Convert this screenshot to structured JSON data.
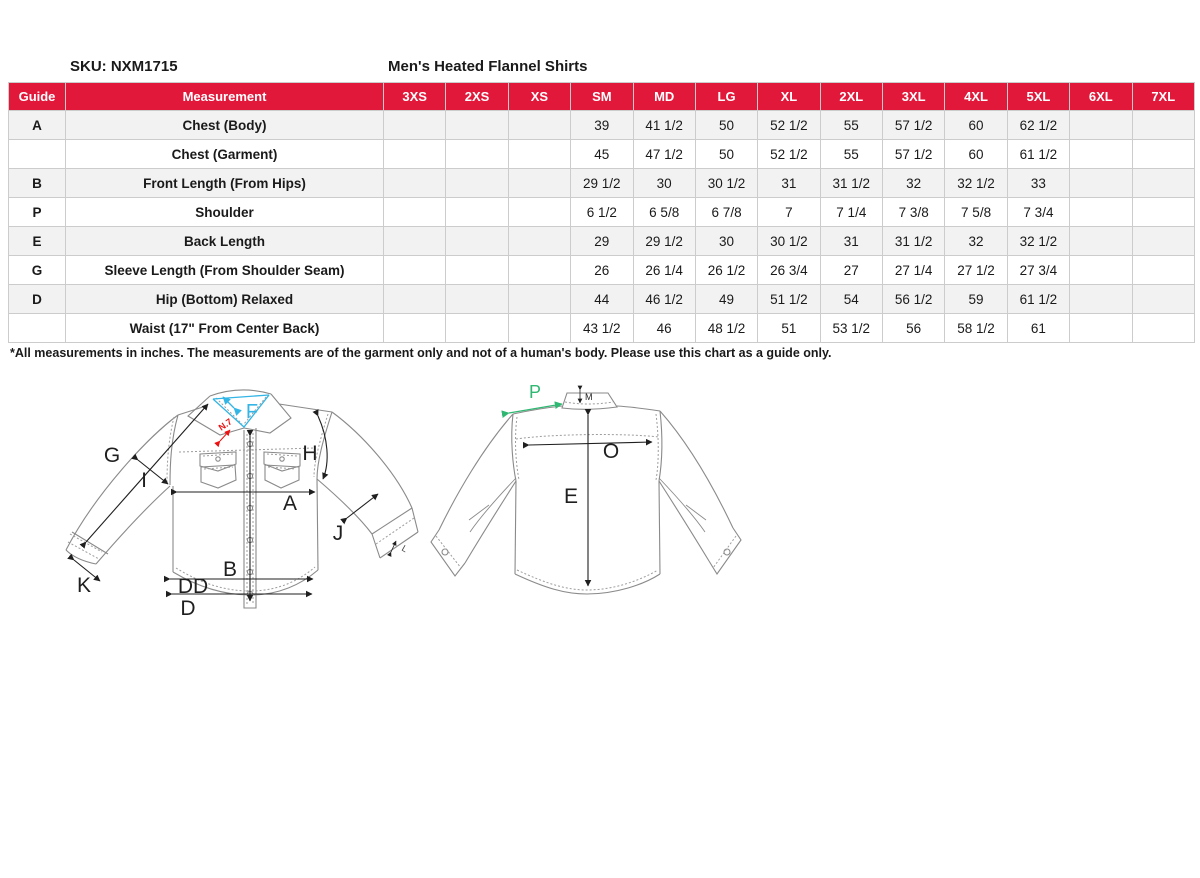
{
  "header": {
    "sku_label": "SKU: NXM1715",
    "title": "Men's Heated Flannel Shirts"
  },
  "table": {
    "columns": [
      "Guide",
      "Measurement",
      "3XS",
      "2XS",
      "XS",
      "SM",
      "MD",
      "LG",
      "XL",
      "2XL",
      "3XL",
      "4XL",
      "5XL",
      "6XL",
      "7XL"
    ],
    "rows": [
      {
        "guide": "A",
        "measurement": "Chest (Body)",
        "values": [
          "",
          "",
          "",
          "39",
          "41 1/2",
          "50",
          "52 1/2",
          "55",
          "57 1/2",
          "60",
          "62 1/2",
          "",
          ""
        ]
      },
      {
        "guide": "",
        "measurement": "Chest (Garment)",
        "values": [
          "",
          "",
          "",
          "45",
          "47 1/2",
          "50",
          "52 1/2",
          "55",
          "57 1/2",
          "60",
          "61 1/2",
          "",
          ""
        ]
      },
      {
        "guide": "B",
        "measurement": "Front Length (From Hips)",
        "values": [
          "",
          "",
          "",
          "29 1/2",
          "30",
          "30 1/2",
          "31",
          "31 1/2",
          "32",
          "32 1/2",
          "33",
          "",
          ""
        ]
      },
      {
        "guide": "P",
        "measurement": "Shoulder",
        "values": [
          "",
          "",
          "",
          "6 1/2",
          "6 5/8",
          "6 7/8",
          "7",
          "7 1/4",
          "7 3/8",
          "7 5/8",
          "7 3/4",
          "",
          ""
        ]
      },
      {
        "guide": "E",
        "measurement": "Back Length",
        "values": [
          "",
          "",
          "",
          "29",
          "29 1/2",
          "30",
          "30 1/2",
          "31",
          "31 1/2",
          "32",
          "32 1/2",
          "",
          ""
        ]
      },
      {
        "guide": "G",
        "measurement": "Sleeve Length (From Shoulder Seam)",
        "values": [
          "",
          "",
          "",
          "26",
          "26 1/4",
          "26 1/2",
          "26 3/4",
          "27",
          "27 1/4",
          "27 1/2",
          "27 3/4",
          "",
          ""
        ]
      },
      {
        "guide": "D",
        "measurement": "Hip (Bottom) Relaxed",
        "values": [
          "",
          "",
          "",
          "44",
          "46 1/2",
          "49",
          "51 1/2",
          "54",
          "56 1/2",
          "59",
          "61 1/2",
          "",
          ""
        ]
      },
      {
        "guide": "",
        "measurement": "Waist (17\" From Center Back)",
        "values": [
          "",
          "",
          "",
          "43 1/2",
          "46",
          "48 1/2",
          "51",
          "53 1/2",
          "56",
          "58 1/2",
          "61",
          "",
          ""
        ]
      }
    ]
  },
  "footnote": "*All measurements in inches. The measurements are of the garment only and not of a human's body. Please use this chart as a guide only.",
  "diagram": {
    "front_labels": {
      "f": "F",
      "n7": "N.7",
      "g": "G",
      "i": "I",
      "h": "H",
      "a": "A",
      "j": "J",
      "b": "B",
      "k": "K",
      "dd": "DD",
      "d": "D",
      "l": "L"
    },
    "back_labels": {
      "p": "P",
      "m": "M",
      "o": "O",
      "e": "E"
    }
  },
  "colors": {
    "header_bg": "#E2183A",
    "header_text": "#FFFFFF",
    "row_alt": "#F2F2F2",
    "border": "#CCCCCC",
    "accent_cyan": "#33B5E5",
    "accent_green": "#2EB872",
    "accent_red": "#EE1111"
  }
}
